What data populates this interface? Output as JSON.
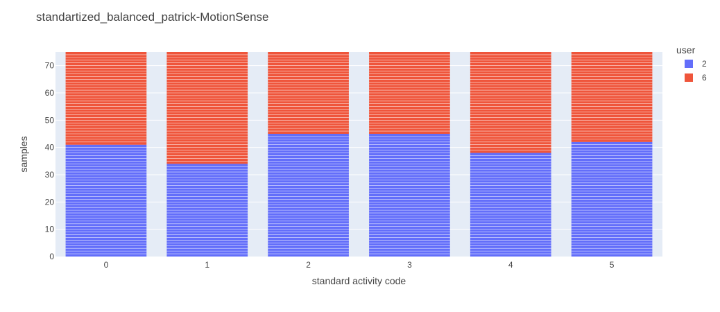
{
  "chart_data": {
    "type": "bar",
    "stacked": true,
    "title": "standartized_balanced_patrick-MotionSense",
    "xlabel": "standard activity code",
    "ylabel": "samples",
    "categories": [
      "0",
      "1",
      "2",
      "3",
      "4",
      "5"
    ],
    "ylim": [
      0,
      75
    ],
    "yticks": [
      0,
      10,
      20,
      30,
      40,
      50,
      60,
      70
    ],
    "grid": true,
    "legend": {
      "title": "user",
      "position": "top-right"
    },
    "series": [
      {
        "name": "2",
        "color": "#636efa",
        "values": [
          41,
          34,
          45,
          45,
          38,
          42
        ]
      },
      {
        "name": "6",
        "color": "#ef553b",
        "values": [
          34,
          41,
          30,
          30,
          37,
          33
        ]
      }
    ],
    "background_color": "#e5ecf6"
  }
}
